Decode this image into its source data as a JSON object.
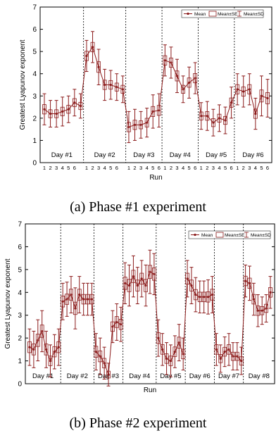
{
  "chart_data": [
    {
      "type": "line",
      "caption": "(a) Phase #1 experiment",
      "xlabel": "Run",
      "ylabel": "Greatest Lyapunov exponent",
      "ylim": [
        0,
        7
      ],
      "yticks": [
        "0",
        "1",
        "2",
        "3",
        "4",
        "5",
        "6",
        "7"
      ],
      "run_labels": [
        "1",
        "2",
        "3",
        "4",
        "5",
        "6"
      ],
      "legend": {
        "mean": "Mean",
        "se": "Mean±SE",
        "sd": "Mean±SD"
      },
      "colors": {
        "line": "#8b1a1a",
        "marker": "#8b1a1a",
        "axis": "#000000"
      },
      "days": [
        {
          "label": "Day #1",
          "mean": [
            2.4,
            2.2,
            2.2,
            2.3,
            2.4,
            2.7,
            2.55
          ],
          "sd": [
            0.7,
            0.6,
            0.6,
            0.65,
            0.6,
            0.6,
            0.55
          ]
        },
        {
          "label": "Day #2",
          "mean": [
            4.8,
            5.2,
            4.3,
            3.5,
            3.5,
            3.4,
            3.3
          ],
          "sd": [
            0.7,
            0.7,
            0.8,
            0.7,
            0.65,
            0.6,
            0.6
          ]
        },
        {
          "label": "Day #3",
          "mean": [
            1.6,
            1.7,
            1.7,
            1.8,
            2.3,
            2.35
          ],
          "sd": [
            0.7,
            0.7,
            0.6,
            0.65,
            0.75,
            0.75
          ]
        },
        {
          "label": "Day #4",
          "mean": [
            4.6,
            4.5,
            3.9,
            3.3,
            3.6,
            3.8
          ],
          "sd": [
            0.7,
            0.7,
            0.75,
            0.6,
            0.7,
            0.7
          ]
        },
        {
          "label": "Day #5",
          "mean": [
            2.1,
            2.1,
            1.8,
            2.0,
            1.9,
            2.7
          ],
          "sd": [
            0.6,
            0.65,
            0.6,
            0.6,
            0.6,
            0.7
          ]
        },
        {
          "label": "Day #6",
          "mean": [
            3.3,
            3.2,
            3.3,
            2.2,
            3.0,
            2.9
          ],
          "sd": [
            0.7,
            0.7,
            0.7,
            0.7,
            0.9,
            0.85
          ]
        }
      ]
    },
    {
      "type": "line",
      "caption": "(b) Phase #2 experiment",
      "xlabel": "Run",
      "ylabel": "Greatest Lyapunov exponent",
      "ylim": [
        0,
        7
      ],
      "yticks": [
        "0",
        "1",
        "2",
        "3",
        "4",
        "5",
        "6",
        "7"
      ],
      "legend": {
        "mean": "Mean",
        "se": "Mean±SE",
        "sd": "Mean±SD"
      },
      "colors": {
        "line": "#8b1a1a",
        "marker": "#8b1a1a",
        "axis": "#000000"
      },
      "days": [
        {
          "label": "Day #1",
          "mean": [
            1.6,
            1.5,
            1.9,
            2.3,
            1.5,
            1.0,
            1.4,
            1.6
          ],
          "sd": [
            0.8,
            0.8,
            0.9,
            0.9,
            0.8,
            0.7,
            0.75,
            0.8
          ]
        },
        {
          "label": "Day #2",
          "mean": [
            3.6,
            3.7,
            3.9,
            3.3,
            3.9,
            3.7,
            3.7,
            3.7
          ],
          "sd": [
            0.8,
            0.75,
            0.8,
            0.9,
            0.8,
            0.7,
            0.7,
            0.7
          ]
        },
        {
          "label": "Day #3",
          "mean": [
            1.4,
            1.2,
            0.9,
            0.4,
            2.5,
            2.7,
            2.6
          ],
          "sd": [
            0.8,
            0.8,
            0.7,
            0.5,
            0.7,
            0.8,
            0.75
          ]
        },
        {
          "label": "Day #4",
          "mean": [
            4.4,
            4.3,
            4.7,
            4.3,
            4.6,
            4.3,
            4.9,
            4.8
          ],
          "sd": [
            0.9,
            0.9,
            0.9,
            0.8,
            0.8,
            0.9,
            0.95,
            0.9
          ]
        },
        {
          "label": "Day #5",
          "mean": [
            2.0,
            1.5,
            1.1,
            1.0,
            1.4,
            1.8,
            1.3
          ],
          "sd": [
            0.8,
            0.7,
            0.7,
            0.7,
            0.7,
            0.8,
            0.7
          ]
        },
        {
          "label": "Day #6",
          "mean": [
            4.6,
            4.3,
            3.9,
            3.8,
            3.8,
            3.8,
            3.9
          ],
          "sd": [
            0.8,
            0.8,
            0.75,
            0.7,
            0.7,
            0.75,
            0.8
          ]
        },
        {
          "label": "Day #7",
          "mean": [
            1.5,
            1.1,
            1.4,
            1.5,
            1.2,
            1.2,
            1.0
          ],
          "sd": [
            0.7,
            0.6,
            0.65,
            0.7,
            0.6,
            0.6,
            0.6
          ]
        },
        {
          "label": "Day #8",
          "mean": [
            4.5,
            4.4,
            3.7,
            3.2,
            3.2,
            3.3,
            4.0
          ],
          "sd": [
            0.7,
            0.75,
            0.7,
            0.7,
            0.6,
            0.6,
            0.7
          ]
        }
      ]
    }
  ]
}
